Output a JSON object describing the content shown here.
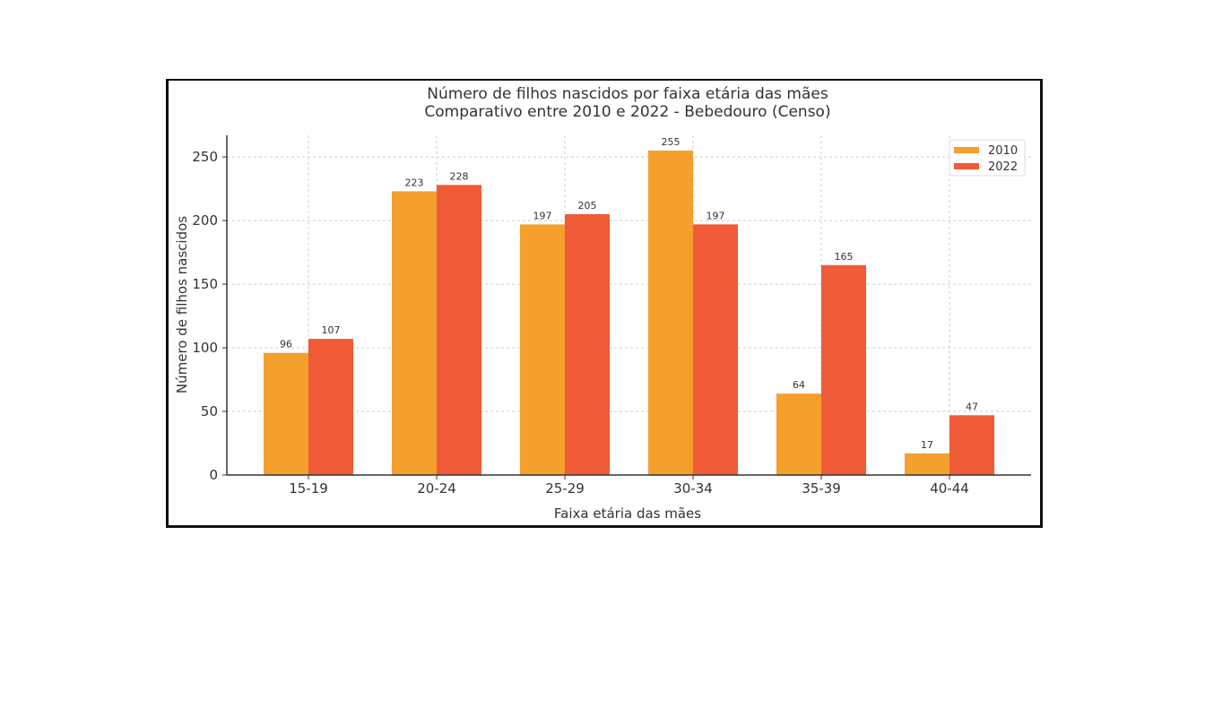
{
  "chart_data": {
    "type": "bar",
    "title": "Número de filhos nascidos por faixa etária das mães",
    "subtitle": "Comparativo entre 2010 e 2022 - Bebedouro (Censo)",
    "xlabel": "Faixa etária das mães",
    "ylabel": "Número de filhos nascidos",
    "categories": [
      "15-19",
      "20-24",
      "25-29",
      "30-34",
      "35-39",
      "40-44"
    ],
    "series": [
      {
        "name": "2010",
        "color": "#F59F2D",
        "values": [
          96,
          223,
          197,
          255,
          64,
          17
        ]
      },
      {
        "name": "2022",
        "color": "#EF5B37",
        "values": [
          107,
          228,
          205,
          197,
          165,
          47
        ]
      }
    ],
    "yticks": [
      0,
      50,
      100,
      150,
      200,
      250
    ],
    "ylim": [
      0,
      267
    ],
    "grid": true,
    "legend": "top-right"
  }
}
